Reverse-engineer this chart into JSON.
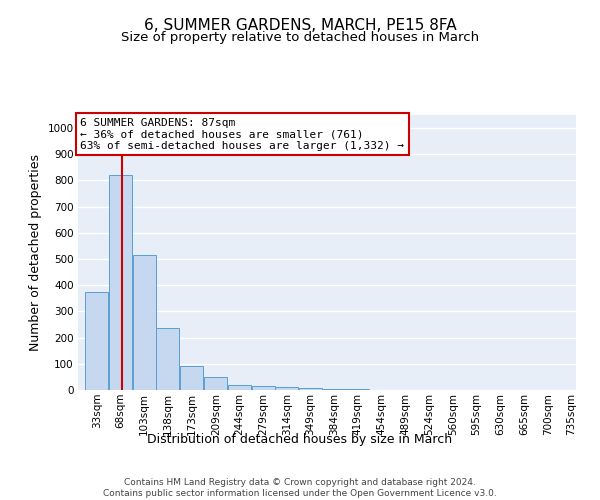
{
  "title": "6, SUMMER GARDENS, MARCH, PE15 8FA",
  "subtitle": "Size of property relative to detached houses in March",
  "xlabel": "Distribution of detached houses by size in March",
  "ylabel": "Number of detached properties",
  "bar_edges": [
    33,
    68,
    103,
    138,
    173,
    209,
    244,
    279,
    314,
    349,
    384,
    419,
    454,
    489,
    524,
    560,
    595,
    630,
    665,
    700,
    735
  ],
  "bar_heights": [
    375,
    820,
    515,
    237,
    92,
    50,
    18,
    15,
    10,
    8,
    3,
    2,
    1,
    1,
    0,
    0,
    0,
    0,
    0,
    0
  ],
  "bar_color": "#c5d8f0",
  "bar_edgecolor": "#5a9fd4",
  "vline_x": 87,
  "vline_color": "#cc0000",
  "annotation_text": "6 SUMMER GARDENS: 87sqm\n← 36% of detached houses are smaller (761)\n63% of semi-detached houses are larger (1,332) →",
  "annotation_box_color": "#cc0000",
  "ylim": [
    0,
    1050
  ],
  "yticks": [
    0,
    100,
    200,
    300,
    400,
    500,
    600,
    700,
    800,
    900,
    1000
  ],
  "background_color": "#e8eef8",
  "grid_color": "#ffffff",
  "footer_line1": "Contains HM Land Registry data © Crown copyright and database right 2024.",
  "footer_line2": "Contains public sector information licensed under the Open Government Licence v3.0.",
  "title_fontsize": 11,
  "subtitle_fontsize": 9.5,
  "axis_label_fontsize": 9,
  "tick_fontsize": 7.5,
  "annotation_fontsize": 8
}
